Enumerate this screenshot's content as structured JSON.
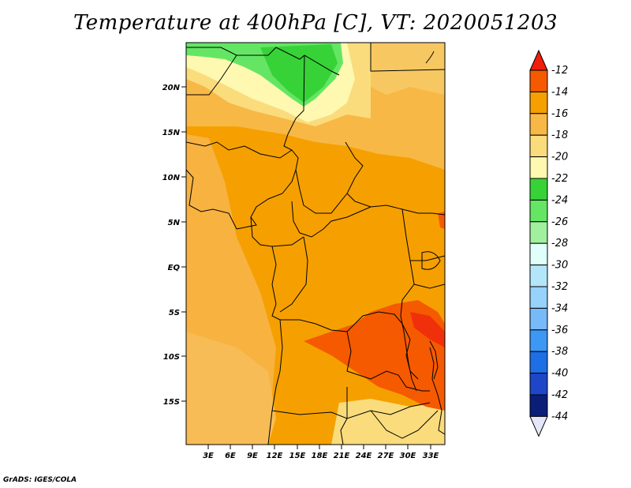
{
  "title": "Temperature at 400hPa [C], VT: 2020051203",
  "credit": "GrADS: IGES/COLA",
  "map": {
    "lat_labels": [
      "20N",
      "15N",
      "10N",
      "5N",
      "EQ",
      "5S",
      "10S",
      "15S"
    ],
    "lon_labels": [
      "3E",
      "6E",
      "9E",
      "12E",
      "15E",
      "18E",
      "21E",
      "24E",
      "27E",
      "30E",
      "33E"
    ]
  },
  "colorbar": {
    "labels": [
      "-12",
      "-14",
      "-16",
      "-18",
      "-20",
      "-22",
      "-24",
      "-26",
      "-28",
      "-30",
      "-32",
      "-34",
      "-36",
      "-38",
      "-40",
      "-42",
      "-44"
    ],
    "colors": [
      "#f01e0a",
      "#f55a00",
      "#f5a000",
      "#f7b846",
      "#fadc7c",
      "#fff8b0",
      "#37d237",
      "#64e664",
      "#a0f0a0",
      "#e0fffa",
      "#b4e6fa",
      "#96d2fa",
      "#78b9fa",
      "#3c97f5",
      "#1e6ee6",
      "#1e46c8",
      "#0a1e78",
      "#e6e6fa"
    ]
  }
}
